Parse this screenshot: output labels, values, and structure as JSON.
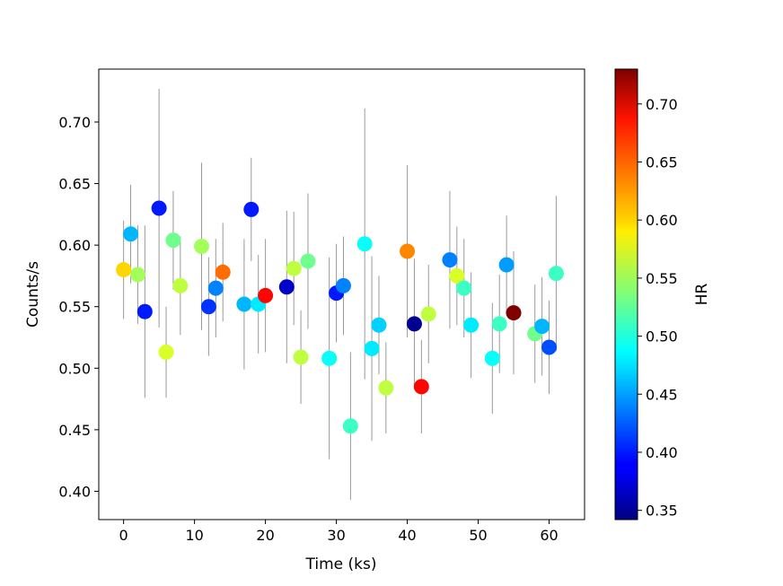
{
  "chart_data": {
    "type": "scatter",
    "title": "",
    "xlabel": "Time (ks)",
    "ylabel": "Counts/s",
    "colorbar_label": "HR",
    "colormap": "jet",
    "xlim": [
      -3.5,
      65
    ],
    "ylim": [
      0.377,
      0.743
    ],
    "x_ticks": [
      0,
      10,
      20,
      30,
      40,
      50,
      60
    ],
    "x_tick_labels": [
      "0",
      "10",
      "20",
      "30",
      "40",
      "50",
      "60"
    ],
    "y_ticks": [
      0.4,
      0.45,
      0.5,
      0.55,
      0.6,
      0.65,
      0.7
    ],
    "y_tick_labels": [
      "0.40",
      "0.45",
      "0.50",
      "0.55",
      "0.60",
      "0.65",
      "0.70"
    ],
    "hr_range": [
      0.342,
      0.73
    ],
    "hr_ticks": [
      0.35,
      0.4,
      0.45,
      0.5,
      0.55,
      0.6,
      0.65,
      0.7
    ],
    "hr_tick_labels": [
      "0.35",
      "0.40",
      "0.45",
      "0.50",
      "0.55",
      "0.60",
      "0.65",
      "0.70"
    ],
    "errorbar_color": "#999999",
    "points": [
      {
        "x": 0,
        "y": 0.58,
        "err": 0.04,
        "hr": 0.6
      },
      {
        "x": 1,
        "y": 0.609,
        "err": 0.04,
        "hr": 0.46
      },
      {
        "x": 2,
        "y": 0.576,
        "err": 0.04,
        "hr": 0.55
      },
      {
        "x": 3,
        "y": 0.546,
        "err": 0.07,
        "hr": 0.4
      },
      {
        "x": 5,
        "y": 0.63,
        "err": 0.097,
        "hr": 0.4
      },
      {
        "x": 6,
        "y": 0.513,
        "err": 0.037,
        "hr": 0.57
      },
      {
        "x": 7,
        "y": 0.604,
        "err": 0.04,
        "hr": 0.53
      },
      {
        "x": 8,
        "y": 0.567,
        "err": 0.04,
        "hr": 0.56
      },
      {
        "x": 11,
        "y": 0.599,
        "err": 0.068,
        "hr": 0.55
      },
      {
        "x": 12,
        "y": 0.55,
        "err": 0.04,
        "hr": 0.41
      },
      {
        "x": 13,
        "y": 0.565,
        "err": 0.04,
        "hr": 0.44
      },
      {
        "x": 14,
        "y": 0.578,
        "err": 0.04,
        "hr": 0.64
      },
      {
        "x": 17,
        "y": 0.552,
        "err": 0.053,
        "hr": 0.46
      },
      {
        "x": 18,
        "y": 0.629,
        "err": 0.042,
        "hr": 0.4
      },
      {
        "x": 19,
        "y": 0.552,
        "err": 0.04,
        "hr": 0.48
      },
      {
        "x": 20,
        "y": 0.559,
        "err": 0.046,
        "hr": 0.68
      },
      {
        "x": 23,
        "y": 0.566,
        "err": 0.062,
        "hr": 0.37
      },
      {
        "x": 24,
        "y": 0.581,
        "err": 0.046,
        "hr": 0.56
      },
      {
        "x": 25,
        "y": 0.509,
        "err": 0.038,
        "hr": 0.56
      },
      {
        "x": 26,
        "y": 0.587,
        "err": 0.055,
        "hr": 0.53
      },
      {
        "x": 29,
        "y": 0.508,
        "err": 0.082,
        "hr": 0.49
      },
      {
        "x": 30,
        "y": 0.561,
        "err": 0.04,
        "hr": 0.4
      },
      {
        "x": 31,
        "y": 0.567,
        "err": 0.04,
        "hr": 0.44
      },
      {
        "x": 32,
        "y": 0.453,
        "err": 0.06,
        "hr": 0.51
      },
      {
        "x": 34,
        "y": 0.601,
        "err": 0.11,
        "hr": 0.49
      },
      {
        "x": 35,
        "y": 0.516,
        "err": 0.075,
        "hr": 0.48
      },
      {
        "x": 36,
        "y": 0.535,
        "err": 0.04,
        "hr": 0.47
      },
      {
        "x": 37,
        "y": 0.484,
        "err": 0.037,
        "hr": 0.56
      },
      {
        "x": 40,
        "y": 0.595,
        "err": 0.07,
        "hr": 0.63
      },
      {
        "x": 41,
        "y": 0.536,
        "err": 0.053,
        "hr": 0.35
      },
      {
        "x": 42,
        "y": 0.485,
        "err": 0.038,
        "hr": 0.68
      },
      {
        "x": 43,
        "y": 0.544,
        "err": 0.04,
        "hr": 0.56
      },
      {
        "x": 46,
        "y": 0.588,
        "err": 0.056,
        "hr": 0.44
      },
      {
        "x": 47,
        "y": 0.575,
        "err": 0.04,
        "hr": 0.57
      },
      {
        "x": 48,
        "y": 0.565,
        "err": 0.04,
        "hr": 0.51
      },
      {
        "x": 49,
        "y": 0.535,
        "err": 0.043,
        "hr": 0.48
      },
      {
        "x": 52,
        "y": 0.508,
        "err": 0.045,
        "hr": 0.49
      },
      {
        "x": 53,
        "y": 0.536,
        "err": 0.04,
        "hr": 0.51
      },
      {
        "x": 54,
        "y": 0.584,
        "err": 0.04,
        "hr": 0.45
      },
      {
        "x": 55,
        "y": 0.545,
        "err": 0.05,
        "hr": 0.73
      },
      {
        "x": 58,
        "y": 0.528,
        "err": 0.04,
        "hr": 0.53
      },
      {
        "x": 59,
        "y": 0.534,
        "err": 0.04,
        "hr": 0.46
      },
      {
        "x": 60,
        "y": 0.517,
        "err": 0.038,
        "hr": 0.42
      },
      {
        "x": 61,
        "y": 0.577,
        "err": 0.063,
        "hr": 0.51
      }
    ]
  }
}
